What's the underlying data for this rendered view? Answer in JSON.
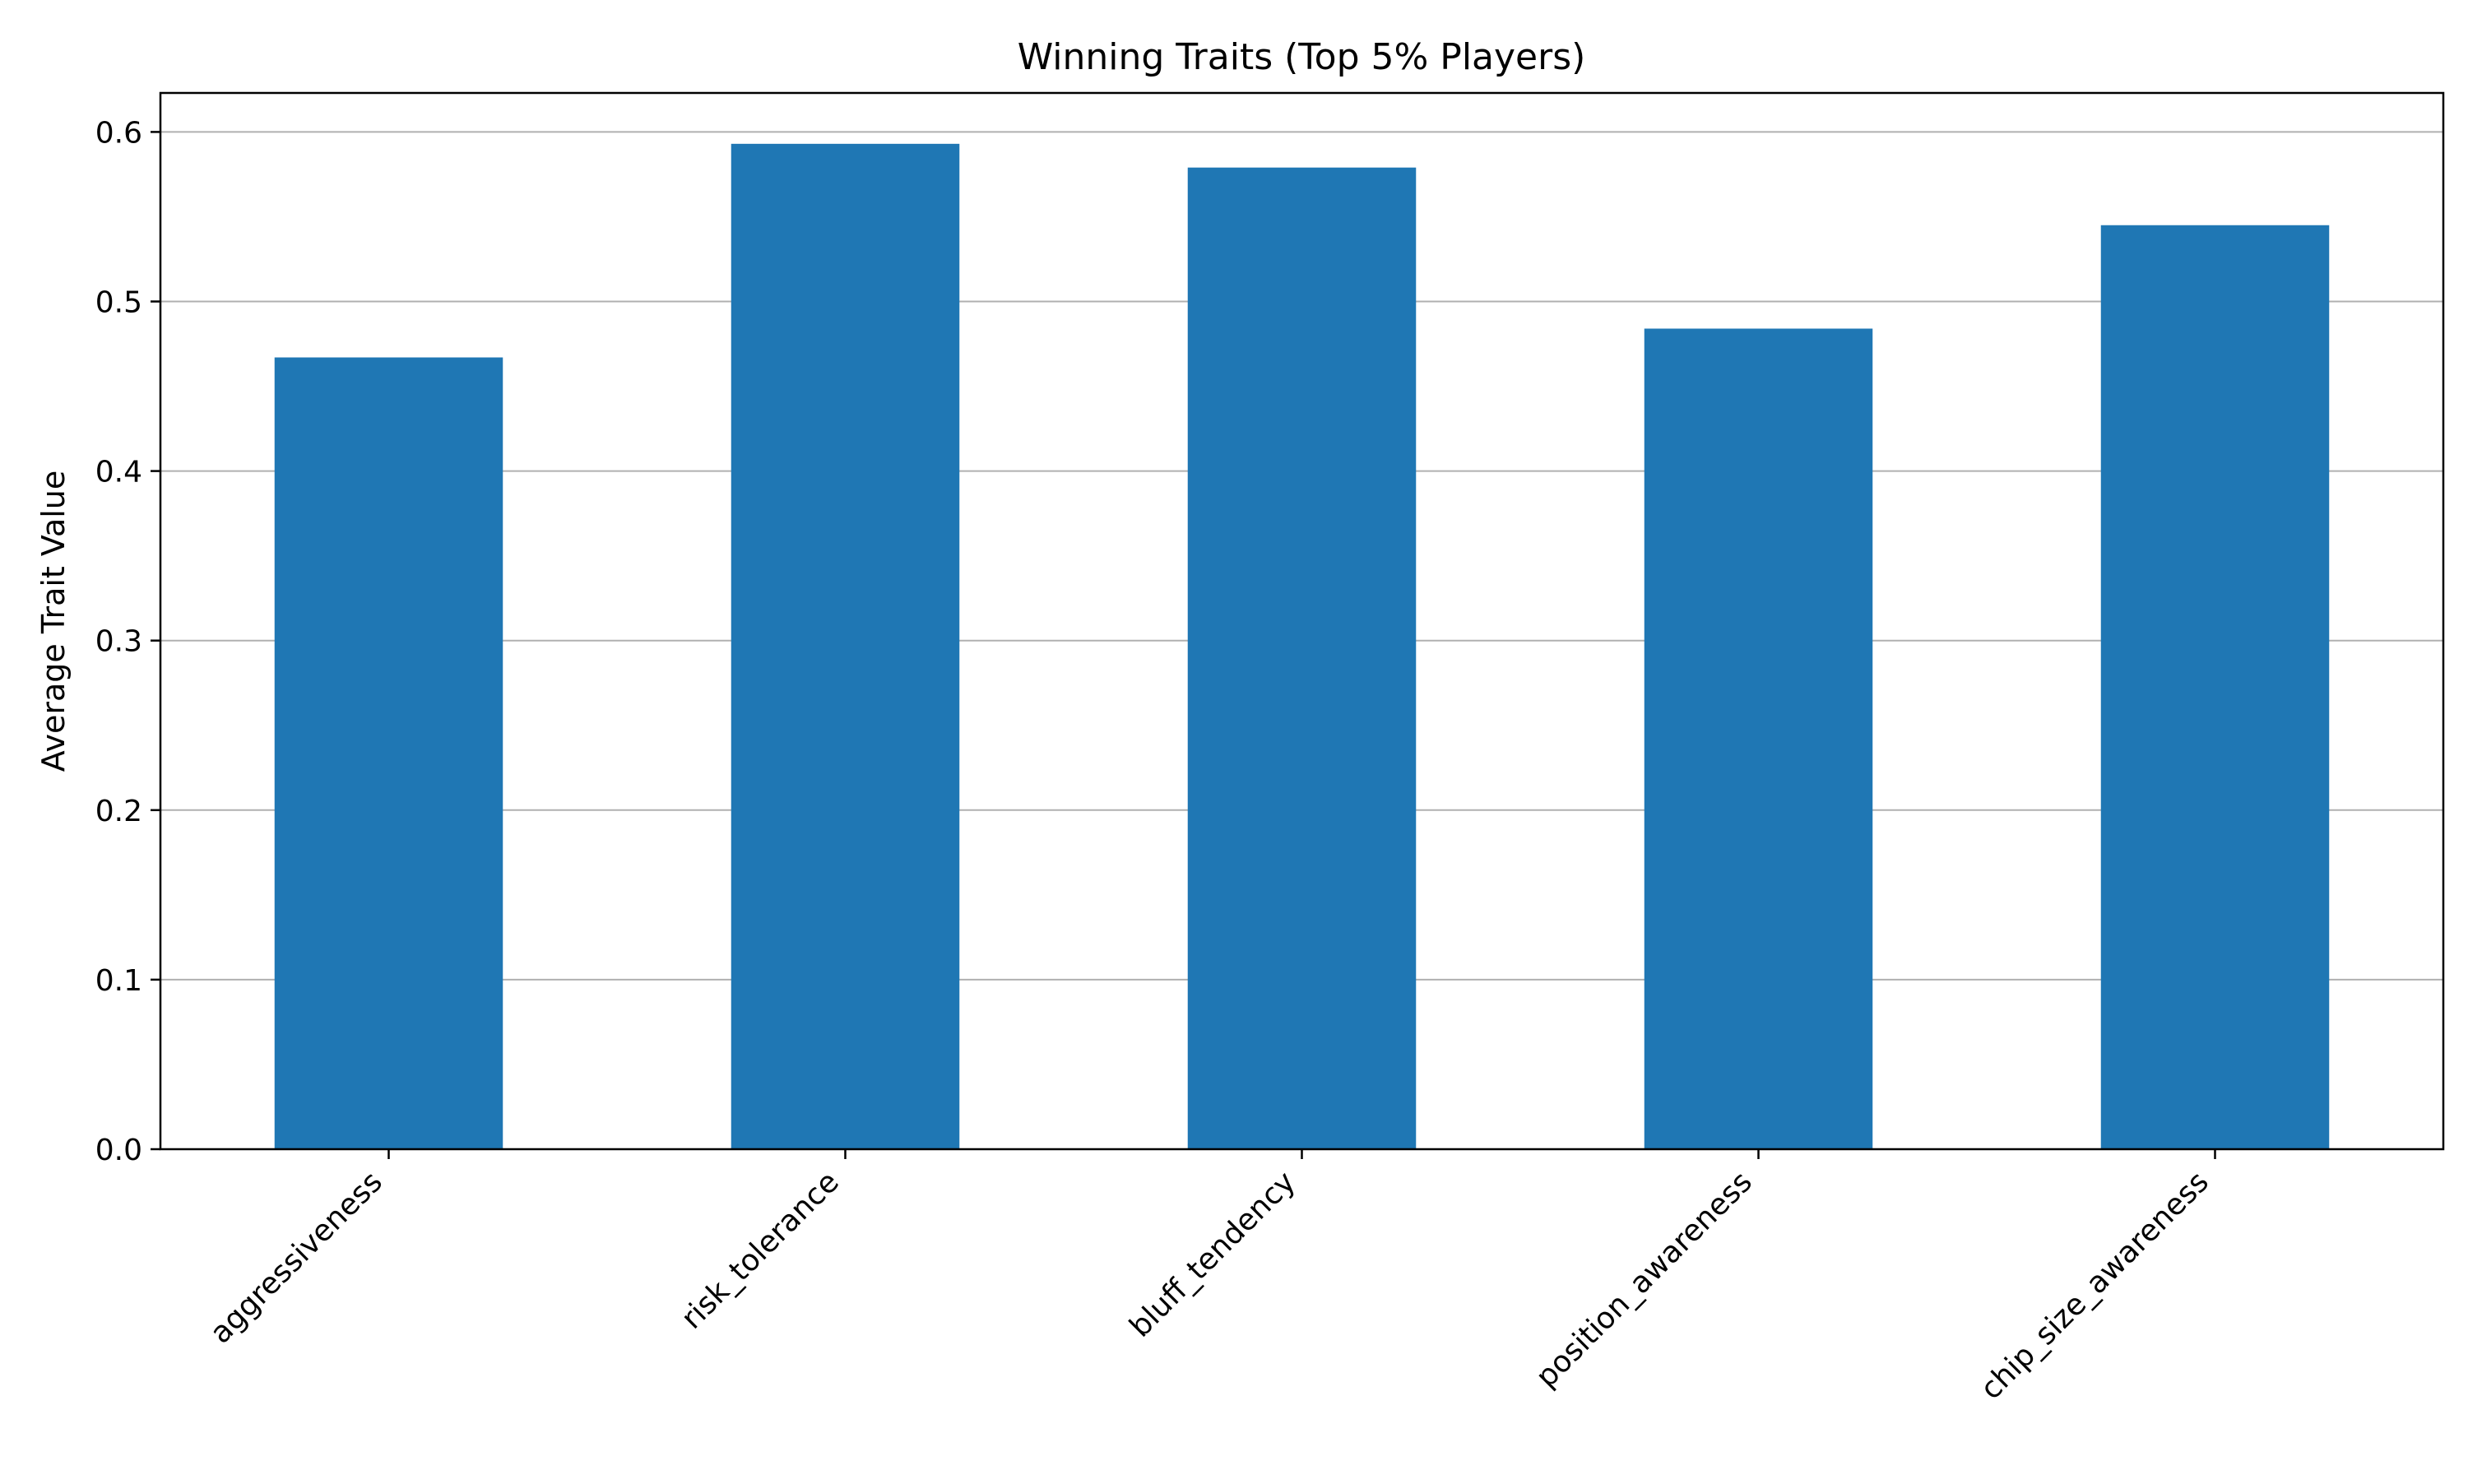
{
  "chart_data": {
    "type": "bar",
    "title": "Winning Traits (Top 5% Players)",
    "xlabel": "",
    "ylabel": "Average Trait Value",
    "categories": [
      "aggressiveness",
      "risk_tolerance",
      "bluff_tendency",
      "position_awareness",
      "chip_size_awareness"
    ],
    "values": [
      0.467,
      0.593,
      0.579,
      0.484,
      0.545
    ],
    "ylim": [
      0,
      0.623
    ],
    "yticks": [
      "0.0",
      "0.1",
      "0.2",
      "0.3",
      "0.4",
      "0.5",
      "0.6"
    ],
    "grid": "y-major",
    "legend": "none",
    "colors": {
      "bar": "#1f77b4",
      "grid": "#b0b0b0",
      "axis": "#000000"
    }
  }
}
